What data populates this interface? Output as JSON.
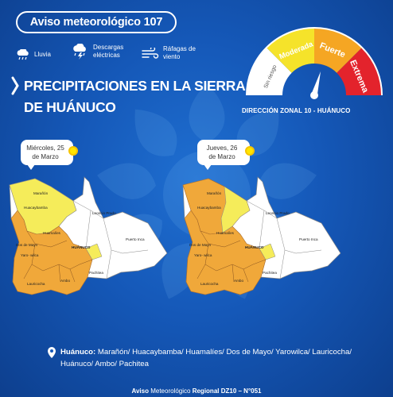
{
  "header": {
    "badge": "Aviso meteorológico 107"
  },
  "legend": [
    {
      "icon": "rain-icon",
      "label": "Lluvia"
    },
    {
      "icon": "thunderstorm-icon",
      "label": "Descargas\neléctricas"
    },
    {
      "icon": "wind-gust-icon",
      "label": "Ráfagas de\nviento"
    }
  ],
  "title": {
    "line1": "PRECIPITACIONES EN LA SIERRA",
    "line2": "DE HUÁNUCO"
  },
  "gauge": {
    "levels": [
      "Sin riesgo",
      "Moderada",
      "Fuerte",
      "Extrema"
    ],
    "colors": [
      "#ffffff",
      "#f5e32a",
      "#f5a623",
      "#e3232c"
    ],
    "current_level": "Fuerte"
  },
  "zone_label": "DIRECCIÓN ZONAL 10 - HUÁNUCO",
  "maps": [
    {
      "date_line1": "Miércoles, 25",
      "date_line2": "de Marzo"
    },
    {
      "date_line1": "Jueves,  26",
      "date_line2": "de Marzo"
    }
  ],
  "provinces": {
    "maranon": "Marañón",
    "huacaybamba": "Huacaybamba",
    "huamalies": "Huamalíes",
    "leoncio": "Leoncio\nPrado",
    "dos_de_mayo": "Dos de\nMayo",
    "yarowilca": "Yaro-\nwilca",
    "huanuco": "HUÁNUCO",
    "puerto_inca": "Puerto\nInca",
    "lauricocha": "Lauricocha",
    "ambo": "Ambo",
    "pachitea": "Pachitea"
  },
  "footer": {
    "region": "Huánuco:",
    "places": "Marañón/ Huacaybamba/ Huamalíes/ Dos de Mayo/ Yarowilca/ Lauricocha/ Huánuco/ Ambo/ Pachitea",
    "sign_left": "Aviso",
    "sign_mid": "Meteorológico",
    "sign_right": "Regional DZ10 – N°051"
  }
}
